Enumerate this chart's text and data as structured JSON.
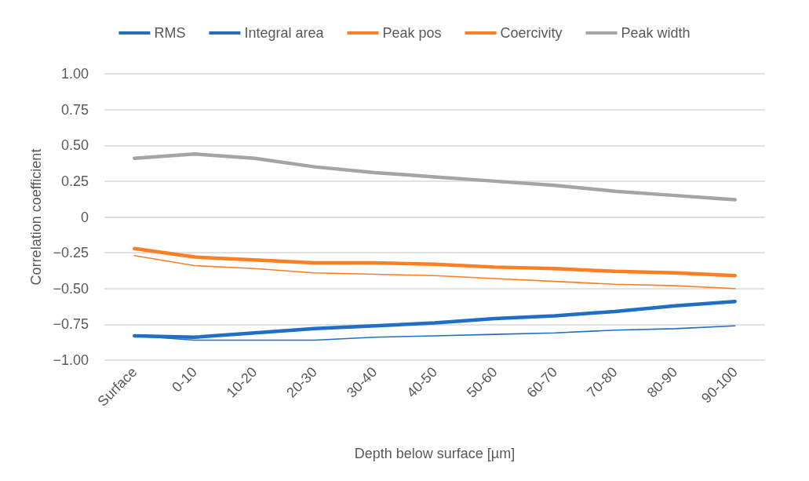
{
  "chart_data": {
    "type": "line",
    "xlabel": "Depth below surface [µm]",
    "ylabel": "Correlation coefficient",
    "categories": [
      "Surface",
      "0-10",
      "10-20",
      "20-30",
      "30-40",
      "40-50",
      "50-60",
      "60-70",
      "70-80",
      "80-90",
      "90-100"
    ],
    "series": [
      {
        "name": "RMS",
        "color": "#1f6fc5",
        "line_style": "solid",
        "values": [
          -0.83,
          -0.84,
          -0.81,
          -0.78,
          -0.76,
          -0.74,
          -0.71,
          -0.69,
          -0.66,
          -0.62,
          -0.59
        ]
      },
      {
        "name": "Integral area",
        "color": "#1f6fc5",
        "values": [
          -0.83,
          -0.86,
          -0.86,
          -0.86,
          -0.84,
          -0.83,
          -0.82,
          -0.81,
          -0.79,
          -0.78,
          -0.76
        ]
      },
      {
        "name": "Peak pos",
        "color": "#fd7f23",
        "line_style": "solid",
        "values": [
          -0.22,
          -0.28,
          -0.3,
          -0.32,
          -0.32,
          -0.33,
          -0.35,
          -0.36,
          -0.38,
          -0.39,
          -0.41
        ]
      },
      {
        "name": "Coercivity",
        "color": "#fd7f23",
        "values": [
          -0.27,
          -0.34,
          -0.36,
          -0.39,
          -0.4,
          -0.41,
          -0.43,
          -0.45,
          -0.47,
          -0.48,
          -0.5
        ]
      },
      {
        "name": "Peak width",
        "color": "#a5a5a5",
        "line_style": "solid",
        "values": [
          0.41,
          0.44,
          0.41,
          0.35,
          0.31,
          0.28,
          0.25,
          0.22,
          0.18,
          0.15,
          0.12
        ]
      }
    ],
    "ylim": [
      -1,
      1
    ],
    "yticks": [
      {
        "value": -1,
        "label": "−1.00"
      },
      {
        "value": -0.75,
        "label": "−0.75"
      },
      {
        "value": -0.5,
        "label": "−0.50"
      },
      {
        "value": -0.25,
        "label": "−0.25"
      },
      0,
      {
        "value": 0.25,
        "label": "0.25"
      },
      {
        "value": 0.5,
        "label": "0.50"
      },
      {
        "value": 0.75,
        "label": "0.75"
      },
      {
        "value": 1,
        "label": "1.00"
      }
    ],
    "grid": "y",
    "legend": "top",
    "marker": "none"
  }
}
